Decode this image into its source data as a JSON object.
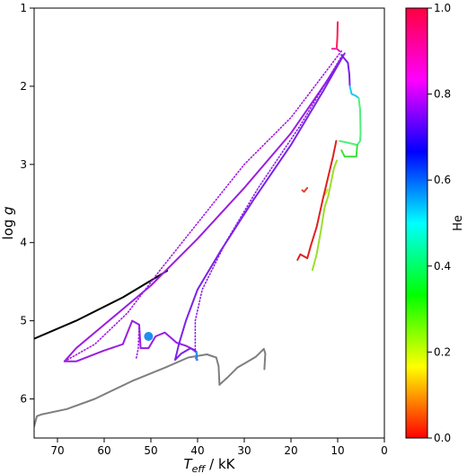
{
  "chart_data": {
    "type": "line",
    "title": "",
    "xlabel": "T_eff / kK",
    "ylabel": "log g",
    "xlim": [
      75,
      0
    ],
    "ylim": [
      1.0,
      6.5
    ],
    "x_inverted": true,
    "y_inverted": true,
    "xticks": [
      70,
      60,
      50,
      40,
      30,
      20,
      10,
      0
    ],
    "yticks": [
      1,
      2,
      3,
      4,
      5,
      6
    ],
    "grid": false,
    "colorbar": {
      "label": "He",
      "range": [
        0.0,
        1.0
      ],
      "ticks": [
        "0.0",
        "0.2",
        "0.4",
        "0.6",
        "0.8",
        "1.0"
      ],
      "colormap": "hsv-like: red → yellow → green → cyan → blue → magenta → red"
    },
    "series": [
      {
        "color": "#000000",
        "style": "solid",
        "points": [
          [
            75,
            5.23
          ],
          [
            66,
            5.0
          ],
          [
            56,
            4.7
          ],
          [
            46.5,
            4.36
          ]
        ]
      },
      {
        "color": "#7f7f7f",
        "style": "solid",
        "points": [
          [
            75,
            6.35
          ],
          [
            74.4,
            6.22
          ],
          [
            73.5,
            6.2
          ],
          [
            68,
            6.13
          ],
          [
            62,
            6.0
          ],
          [
            54,
            5.77
          ],
          [
            47,
            5.6
          ],
          [
            42,
            5.47
          ],
          [
            38,
            5.43
          ],
          [
            36,
            5.47
          ],
          [
            35.5,
            5.58
          ],
          [
            35.3,
            5.82
          ],
          [
            35,
            5.8
          ],
          [
            33.5,
            5.72
          ],
          [
            31.5,
            5.6
          ],
          [
            29.5,
            5.53
          ],
          [
            27.5,
            5.46
          ],
          [
            26.5,
            5.4
          ],
          [
            25.8,
            5.36
          ],
          [
            25.5,
            5.42
          ],
          [
            25.7,
            5.62
          ]
        ]
      },
      {
        "color": "#9a1ee0",
        "style": "solid",
        "points": [
          [
            8.5,
            1.58
          ],
          [
            12.5,
            1.95
          ],
          [
            20,
            2.6
          ],
          [
            30,
            3.3
          ],
          [
            40,
            3.95
          ],
          [
            50,
            4.55
          ],
          [
            60,
            5.05
          ],
          [
            66,
            5.35
          ],
          [
            68.5,
            5.52
          ],
          [
            66,
            5.52
          ],
          [
            60,
            5.38
          ],
          [
            56,
            5.3
          ],
          [
            54,
            5.0
          ],
          [
            52.5,
            5.05
          ],
          [
            52.2,
            5.35
          ],
          [
            50.5,
            5.35
          ],
          [
            49,
            5.2
          ],
          [
            47,
            5.15
          ],
          [
            44.5,
            5.28
          ],
          [
            42.5,
            5.32
          ],
          [
            40.5,
            5.38
          ]
        ]
      },
      {
        "color": "#7b22e8",
        "style": "solid",
        "points": [
          [
            8.9,
            1.62
          ],
          [
            13,
            2.05
          ],
          [
            20,
            2.75
          ],
          [
            28,
            3.45
          ],
          [
            35,
            4.1
          ],
          [
            40,
            4.6
          ],
          [
            42.5,
            5.0
          ],
          [
            44,
            5.3
          ],
          [
            44.8,
            5.5
          ],
          [
            43.5,
            5.42
          ],
          [
            41.5,
            5.35
          ],
          [
            40.2,
            5.4
          ],
          [
            40.2,
            5.5
          ]
        ]
      },
      {
        "color": "#a218e8",
        "style": "dotted",
        "points": [
          [
            9.2,
            1.55
          ],
          [
            20,
            2.4
          ],
          [
            30,
            3.0
          ],
          [
            40,
            3.75
          ],
          [
            48,
            4.35
          ],
          [
            55,
            4.9
          ],
          [
            62,
            5.3
          ],
          [
            68.5,
            5.52
          ]
        ]
      },
      {
        "color": "#8a1ee8",
        "style": "dotted",
        "points": [
          [
            9.0,
            1.6
          ],
          [
            18,
            2.5
          ],
          [
            27,
            3.3
          ],
          [
            34,
            4.0
          ],
          [
            39,
            4.6
          ],
          [
            40.5,
            5.0
          ],
          [
            40.5,
            5.4
          ]
        ]
      },
      {
        "color": "#9a1ee0",
        "style": "dotted",
        "points": [
          [
            52.5,
            5.05
          ],
          [
            52.7,
            5.35
          ],
          [
            53.2,
            5.5
          ]
        ]
      },
      {
        "color": "#ff1f58",
        "style": "solid",
        "points": [
          [
            10.0,
            1.18
          ],
          [
            10.05,
            1.35
          ],
          [
            10.2,
            1.5
          ]
        ]
      },
      {
        "color": "#e81ea8",
        "style": "solid",
        "points": [
          [
            11.2,
            1.52
          ],
          [
            10.2,
            1.52
          ],
          [
            9.6,
            1.55
          ]
        ]
      },
      {
        "color": "#7a22e8",
        "style": "solid",
        "points": [
          [
            9.2,
            1.6
          ],
          [
            8.5,
            1.65
          ],
          [
            7.8,
            1.7
          ],
          [
            7.5,
            1.85
          ],
          [
            7.4,
            2.0
          ]
        ]
      },
      {
        "color": "#22c8f0",
        "style": "solid",
        "points": [
          [
            7.4,
            2.0
          ],
          [
            7.0,
            2.1
          ],
          [
            6.2,
            2.12
          ],
          [
            5.5,
            2.15
          ]
        ]
      },
      {
        "color": "#4ff07a",
        "style": "solid",
        "points": [
          [
            5.5,
            2.15
          ],
          [
            5.2,
            2.3
          ],
          [
            5.1,
            2.6
          ],
          [
            5.2,
            2.7
          ],
          [
            5.8,
            2.75
          ],
          [
            8.0,
            2.72
          ],
          [
            9.6,
            2.7
          ]
        ]
      },
      {
        "color": "#3de03d",
        "style": "solid",
        "points": [
          [
            5.8,
            2.75
          ],
          [
            6.0,
            2.9
          ],
          [
            8.5,
            2.9
          ],
          [
            9.2,
            2.82
          ]
        ]
      },
      {
        "color": "#9adf2a",
        "style": "solid",
        "points": [
          [
            10.2,
            2.95
          ],
          [
            10.8,
            3.05
          ],
          [
            12.0,
            3.4
          ],
          [
            12.8,
            3.55
          ],
          [
            13.6,
            3.85
          ],
          [
            14.5,
            4.15
          ],
          [
            15.4,
            4.35
          ]
        ]
      },
      {
        "color": "#c8e02a",
        "style": "solid",
        "points": [
          [
            13.0,
            3.4
          ],
          [
            12.6,
            3.38
          ],
          [
            12.2,
            3.32
          ]
        ]
      },
      {
        "color": "#e02020",
        "style": "solid",
        "points": [
          [
            10.3,
            2.7
          ],
          [
            11.0,
            2.9
          ],
          [
            12.0,
            3.15
          ],
          [
            13.2,
            3.45
          ],
          [
            14.5,
            3.8
          ],
          [
            15.8,
            4.05
          ],
          [
            16.5,
            4.2
          ],
          [
            18.0,
            4.15
          ],
          [
            18.6,
            4.22
          ]
        ]
      },
      {
        "color": "#e8402a",
        "style": "solid",
        "points": [
          [
            16.5,
            3.3
          ],
          [
            17.2,
            3.35
          ],
          [
            17.6,
            3.33
          ]
        ]
      },
      {
        "color": "#22a4f0",
        "style": "solid",
        "points": [
          [
            40.2,
            5.4
          ],
          [
            40.4,
            5.48
          ],
          [
            40.0,
            5.5
          ]
        ]
      }
    ],
    "markers": [
      {
        "x": 50.5,
        "y": 5.2,
        "color": "#1e8ff0"
      }
    ]
  }
}
